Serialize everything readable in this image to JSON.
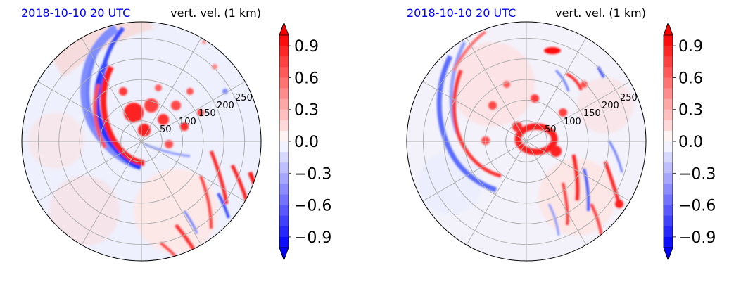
{
  "chart_data": [
    {
      "type": "polar-contour",
      "title_left": "2018-10-10 20 UTC",
      "title_right": "vert. vel. (1 km)",
      "title_left_color": "#0000ff",
      "radial_tick_labels": [
        "50",
        "100",
        "150",
        "200",
        "250"
      ],
      "radial_ticks": [
        50,
        100,
        150,
        200,
        250
      ],
      "rmax": 290,
      "grid": true,
      "theta_gridlines_deg": [
        0,
        30,
        60,
        90,
        120,
        150,
        180,
        210,
        240,
        270,
        300,
        330
      ],
      "colormap": "bwr",
      "vmin": -1.0,
      "vmax": 1.0,
      "colorbar_ticks": [
        0.9,
        0.6,
        0.3,
        0.0,
        -0.3,
        -0.6,
        -0.9
      ],
      "colorbar_tick_labels": [
        "0.9",
        "0.6",
        "0.3",
        "0.0",
        "−0.3",
        "−0.6",
        "−0.9"
      ],
      "colorbar_levels": 20,
      "colorbar_extend": "both"
    },
    {
      "type": "polar-contour",
      "title_left": "2018-10-10 20 UTC",
      "title_right": "vert. vel. (1 km)",
      "title_left_color": "#0000ff",
      "radial_tick_labels": [
        "50",
        "100",
        "150",
        "200",
        "250"
      ],
      "radial_ticks": [
        50,
        100,
        150,
        200,
        250
      ],
      "rmax": 290,
      "grid": true,
      "theta_gridlines_deg": [
        0,
        30,
        60,
        90,
        120,
        150,
        180,
        210,
        240,
        270,
        300,
        330
      ],
      "colormap": "bwr",
      "vmin": -1.0,
      "vmax": 1.0,
      "colorbar_ticks": [
        0.9,
        0.6,
        0.3,
        0.0,
        -0.3,
        -0.6,
        -0.9
      ],
      "colorbar_tick_labels": [
        "0.9",
        "0.6",
        "0.3",
        "0.0",
        "−0.3",
        "−0.6",
        "−0.9"
      ],
      "colorbar_levels": 20,
      "colorbar_extend": "both"
    }
  ]
}
